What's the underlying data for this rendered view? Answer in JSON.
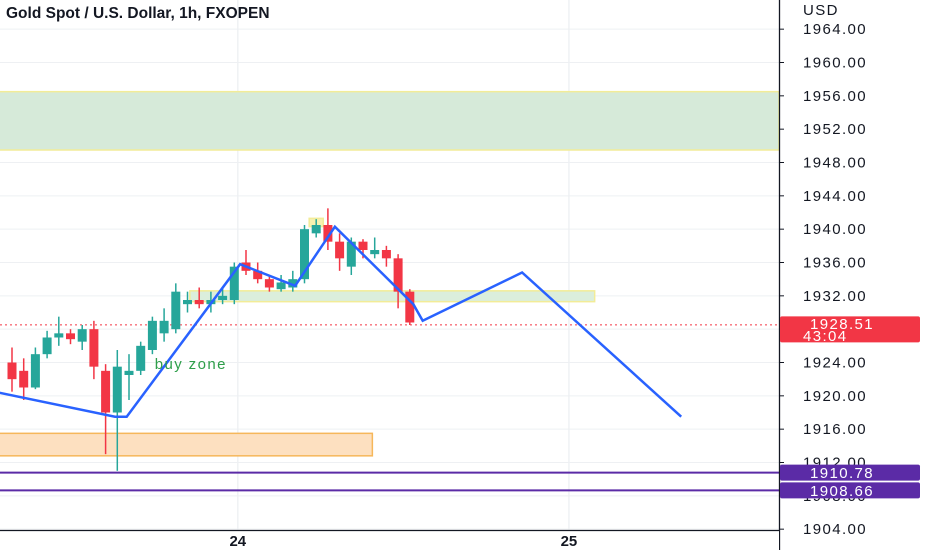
{
  "chart_data": {
    "type": "candlestick",
    "title": "Gold Spot / U.S. Dollar, 1h, FXOPEN",
    "currency_label": "USD",
    "y_range": [
      1901.5,
      1967.5
    ],
    "y_ticks": [
      "1904.00",
      "1908.00",
      "1912.00",
      "1916.00",
      "1920.00",
      "1924.00",
      "1928.00",
      "1932.00",
      "1936.00",
      "1940.00",
      "1944.00",
      "1948.00",
      "1952.00",
      "1956.00",
      "1960.00",
      "1964.00"
    ],
    "x_labels": [
      {
        "label": "24",
        "index": 19.3
      },
      {
        "label": "25",
        "index": 47.6
      }
    ],
    "gridlines": true,
    "candles": [
      {
        "o": 1924.0,
        "h": 1925.8,
        "l": 1920.5,
        "c": 1922.0
      },
      {
        "o": 1923.0,
        "h": 1924.5,
        "l": 1919.5,
        "c": 1921.0
      },
      {
        "o": 1921.0,
        "h": 1925.8,
        "l": 1920.8,
        "c": 1925.0
      },
      {
        "o": 1925.0,
        "h": 1927.8,
        "l": 1924.5,
        "c": 1927.0
      },
      {
        "o": 1927.0,
        "h": 1929.5,
        "l": 1926.0,
        "c": 1927.5
      },
      {
        "o": 1927.5,
        "h": 1928.0,
        "l": 1926.2,
        "c": 1926.8
      },
      {
        "o": 1926.5,
        "h": 1928.5,
        "l": 1925.5,
        "c": 1928.0
      },
      {
        "o": 1928.0,
        "h": 1929.0,
        "l": 1922.0,
        "c": 1923.5
      },
      {
        "o": 1923.0,
        "h": 1923.8,
        "l": 1913.0,
        "c": 1918.0
      },
      {
        "o": 1918.0,
        "h": 1925.5,
        "l": 1911.0,
        "c": 1923.5
      },
      {
        "o": 1922.5,
        "h": 1925.0,
        "l": 1919.5,
        "c": 1923.0
      },
      {
        "o": 1923.0,
        "h": 1926.5,
        "l": 1922.5,
        "c": 1926.0
      },
      {
        "o": 1925.5,
        "h": 1929.5,
        "l": 1925.0,
        "c": 1929.0
      },
      {
        "o": 1927.5,
        "h": 1930.5,
        "l": 1926.5,
        "c": 1929.0
      },
      {
        "o": 1928.0,
        "h": 1933.5,
        "l": 1927.5,
        "c": 1932.5
      },
      {
        "o": 1931.0,
        "h": 1932.5,
        "l": 1930.0,
        "c": 1931.5
      },
      {
        "o": 1931.5,
        "h": 1933.0,
        "l": 1930.5,
        "c": 1931.0
      },
      {
        "o": 1931.0,
        "h": 1932.5,
        "l": 1930.0,
        "c": 1931.5
      },
      {
        "o": 1931.5,
        "h": 1933.0,
        "l": 1931.0,
        "c": 1932.0
      },
      {
        "o": 1931.5,
        "h": 1936.0,
        "l": 1931.0,
        "c": 1935.5
      },
      {
        "o": 1936.0,
        "h": 1937.5,
        "l": 1934.5,
        "c": 1935.0
      },
      {
        "o": 1935.0,
        "h": 1936.0,
        "l": 1933.5,
        "c": 1934.0
      },
      {
        "o": 1934.0,
        "h": 1934.5,
        "l": 1932.5,
        "c": 1933.0
      },
      {
        "o": 1932.8,
        "h": 1934.5,
        "l": 1932.5,
        "c": 1933.6
      },
      {
        "o": 1933.0,
        "h": 1935.0,
        "l": 1932.5,
        "c": 1934.0
      },
      {
        "o": 1934.0,
        "h": 1940.5,
        "l": 1933.5,
        "c": 1940.0
      },
      {
        "o": 1939.5,
        "h": 1941.2,
        "l": 1939.0,
        "c": 1940.5
      },
      {
        "o": 1940.5,
        "h": 1942.5,
        "l": 1937.5,
        "c": 1938.5
      },
      {
        "o": 1938.5,
        "h": 1939.5,
        "l": 1935.0,
        "c": 1936.5
      },
      {
        "o": 1935.5,
        "h": 1939.0,
        "l": 1934.5,
        "c": 1938.5
      },
      {
        "o": 1938.5,
        "h": 1938.8,
        "l": 1936.5,
        "c": 1937.5
      },
      {
        "o": 1937.0,
        "h": 1939.0,
        "l": 1936.5,
        "c": 1937.5
      },
      {
        "o": 1937.5,
        "h": 1938.0,
        "l": 1935.5,
        "c": 1936.5
      },
      {
        "o": 1936.5,
        "h": 1937.0,
        "l": 1930.5,
        "c": 1932.5
      },
      {
        "o": 1932.5,
        "h": 1932.8,
        "l": 1928.5,
        "c": 1928.8
      }
    ],
    "zones": [
      {
        "kind": "supply",
        "top": 1956.5,
        "bottom": 1949.5,
        "from_index": -2,
        "to_index": "edge",
        "fill": "#d6ead9",
        "border": "#f2ec98"
      },
      {
        "kind": "mid",
        "top": 1932.6,
        "bottom": 1931.3,
        "from_index": 15.2,
        "to_index": 49.8,
        "fill": "#dbeedc",
        "border": "#f2ec98"
      },
      {
        "kind": "tiny",
        "top": 1941.3,
        "bottom": 1940.3,
        "from_index": 25.4,
        "to_index": 26.6,
        "fill": "#f6f1b0",
        "border": "#f2ec98"
      },
      {
        "kind": "buy",
        "top": 1915.5,
        "bottom": 1912.8,
        "from_index": -2,
        "to_index": 30.8,
        "fill": "#fde0c0",
        "border": "#f6b75a"
      }
    ],
    "zone_label": {
      "text": "buy zone",
      "index": 12.2,
      "value": 1923.8
    },
    "projection_lines": [
      {
        "color": "#2962ff",
        "points": [
          {
            "i": -1.5,
            "v": 1920.5
          },
          {
            "i": 8.8,
            "v": 1917.5
          },
          {
            "i": 9.8,
            "v": 1917.5
          },
          {
            "i": 19.5,
            "v": 1935.8
          },
          {
            "i": 24.2,
            "v": 1933.2
          },
          {
            "i": 27.6,
            "v": 1940.3
          },
          {
            "i": 34.3,
            "v": 1931.0
          },
          {
            "i": 35.1,
            "v": 1929.0
          },
          {
            "i": 43.6,
            "v": 1934.8
          },
          {
            "i": 57.2,
            "v": 1917.5
          }
        ]
      }
    ],
    "horizontal_lines": [
      {
        "value": 1910.78,
        "label": "1910.78",
        "color": "#5b2ba6"
      },
      {
        "value": 1908.66,
        "label": "1908.66",
        "color": "#5b2ba6"
      }
    ],
    "current_price": {
      "value": 1928.51,
      "label": "1928.51",
      "countdown": "43:04",
      "color": "#f23645"
    },
    "colors": {
      "up": "#26a69a",
      "down": "#f23645",
      "axis_line": "#131722",
      "grid": "#eef0f3"
    }
  }
}
